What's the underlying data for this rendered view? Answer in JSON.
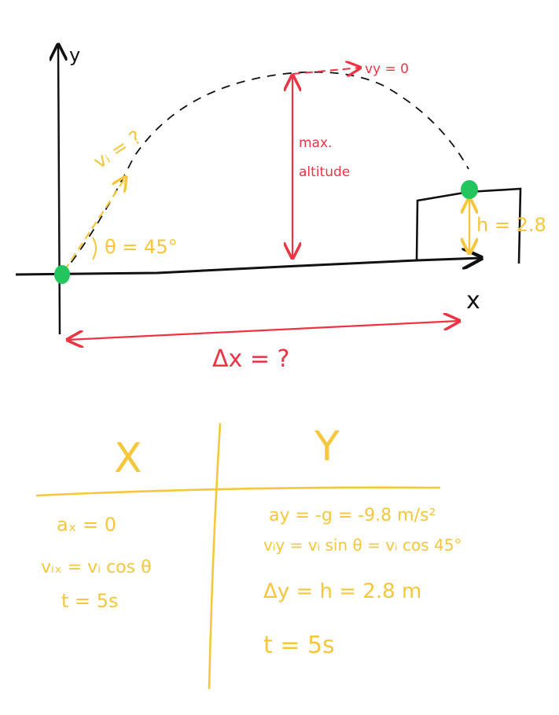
{
  "colors": {
    "ink": "#111111",
    "red": "#ee3344",
    "yellow": "#f6c63b",
    "green": "#22c55e"
  },
  "diagram": {
    "axes": {
      "y_label": "y",
      "x_label": "x"
    },
    "launch": {
      "velocity_label": "vᵢ = ?",
      "angle_label": "θ = 45°"
    },
    "apex": {
      "vy_label": "vy = 0",
      "altitude_label_line1": "max.",
      "altitude_label_line2": "altitude"
    },
    "landing": {
      "height_label": "h = 2.8"
    },
    "range": {
      "label": "Δx = ?"
    }
  },
  "table": {
    "x_header": "X",
    "y_header": "Y",
    "x_rows": [
      "aₓ = 0",
      "vᵢₓ = vᵢ cos θ",
      "t = 5s"
    ],
    "y_rows": [
      "ay = -g = -9.8 m/s²",
      "vᵢy = vᵢ sin θ = vᵢ cos 45°",
      "Δy = h = 2.8 m",
      "t = 5s"
    ]
  }
}
